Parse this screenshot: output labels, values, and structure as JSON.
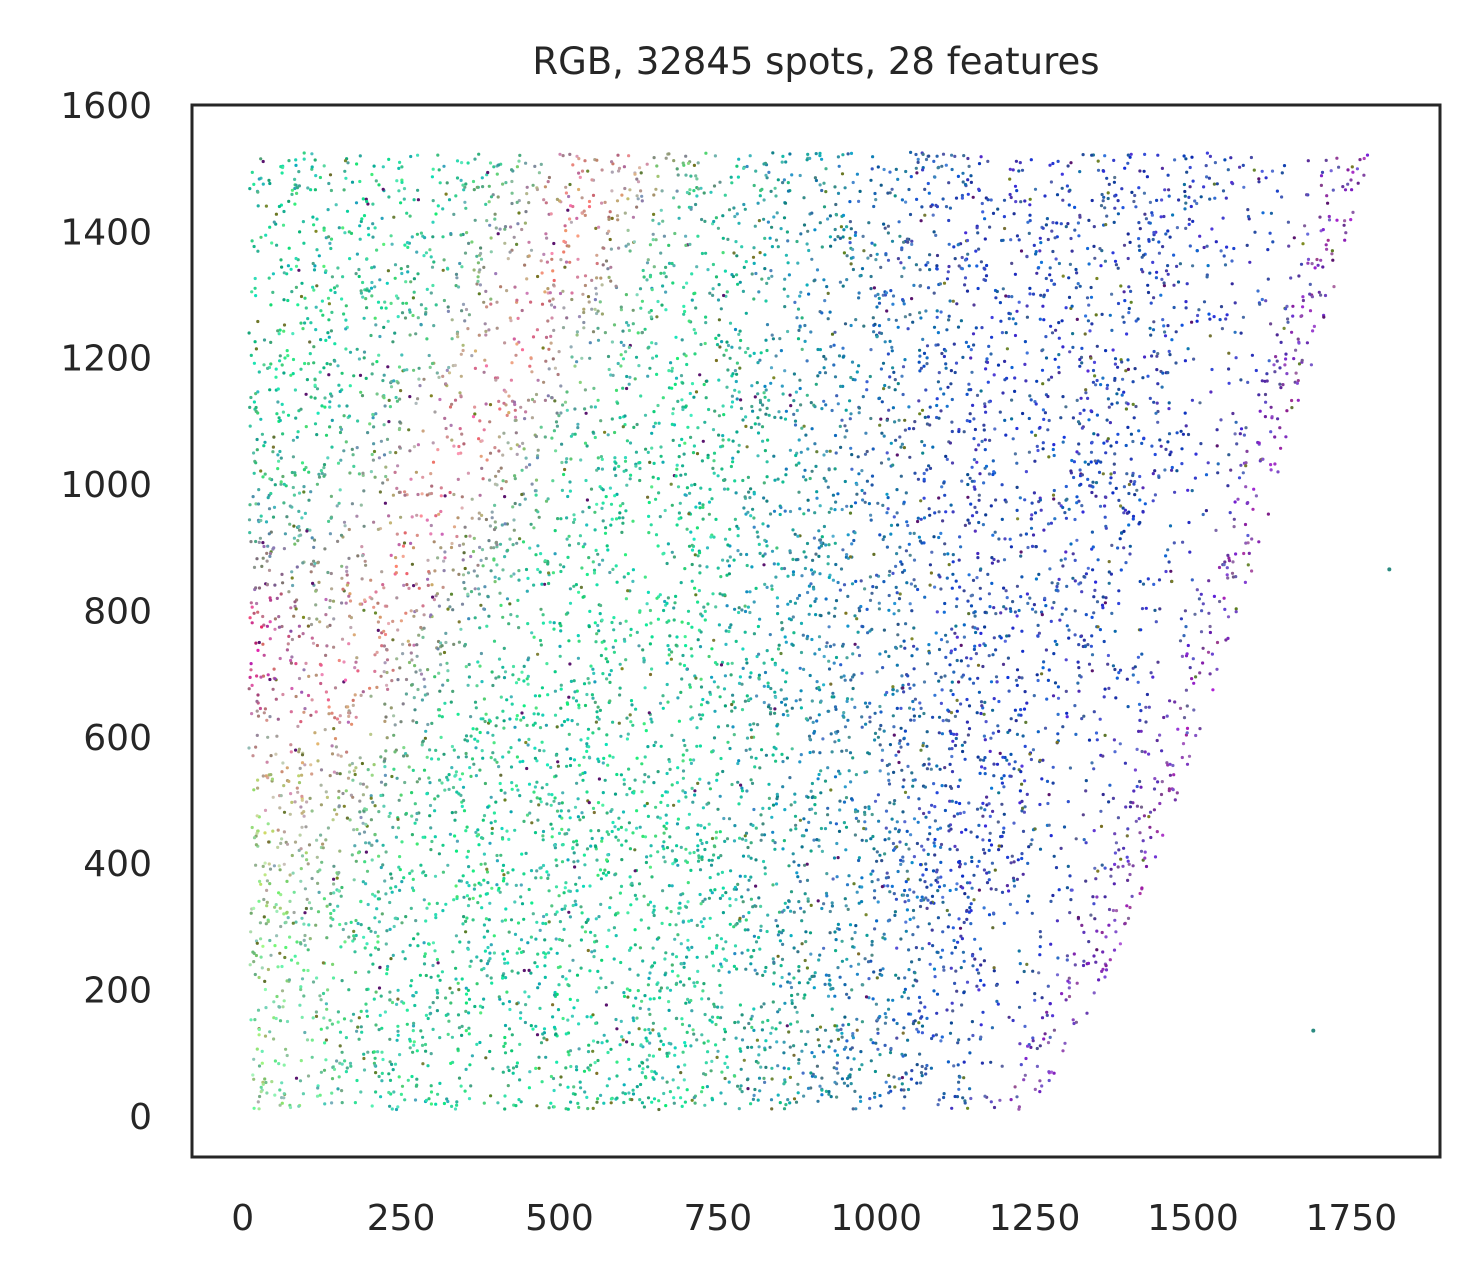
{
  "chart_data": {
    "type": "scatter",
    "title": "RGB, 32845 spots, 28 features",
    "xlabel": "",
    "ylabel": "",
    "xlim": [
      -80,
      1890
    ],
    "ylim": [
      -65,
      1600
    ],
    "x_ticks": [
      0,
      250,
      500,
      750,
      1000,
      1250,
      1500,
      1750
    ],
    "y_ticks": [
      0,
      200,
      400,
      600,
      800,
      1000,
      1200,
      1400,
      1600
    ],
    "x_tick_labels": [
      "0",
      "250",
      "500",
      "750",
      "1000",
      "1250",
      "1500",
      "1750"
    ],
    "y_tick_labels": [
      "0",
      "200",
      "400",
      "600",
      "800",
      "1000",
      "1200",
      "1400",
      "1600"
    ],
    "grid": false,
    "legend": "none",
    "spot_count": 32845,
    "feature_count": 28,
    "point_extent": {
      "x": [
        10,
        1780
      ],
      "y": [
        10,
        1525
      ]
    },
    "outliers": [
      {
        "x": 1810,
        "y": 865
      },
      {
        "x": 1690,
        "y": 135
      }
    ],
    "color_regions": [
      {
        "name": "left-edge",
        "x_range": [
          0,
          150
        ],
        "y_range": [
          600,
          900
        ],
        "color": "#d8408a"
      },
      {
        "name": "diagonal-band",
        "x_range": [
          150,
          650
        ],
        "y_range": [
          550,
          1525
        ],
        "color": "#e88090"
      },
      {
        "name": "lower-left",
        "x_range": [
          0,
          250
        ],
        "y_range": [
          10,
          550
        ],
        "color": "#a8d890"
      },
      {
        "name": "center",
        "x_range": [
          250,
          1000
        ],
        "y_range": [
          10,
          1525
        ],
        "color": "#30c898"
      },
      {
        "name": "right-center",
        "x_range": [
          850,
          1550
        ],
        "y_range": [
          10,
          1525
        ],
        "color": "#3050b8"
      },
      {
        "name": "right-edge",
        "x_range": [
          1150,
          1780
        ],
        "y_range": [
          10,
          1525
        ],
        "color": "#9040b0"
      }
    ]
  }
}
